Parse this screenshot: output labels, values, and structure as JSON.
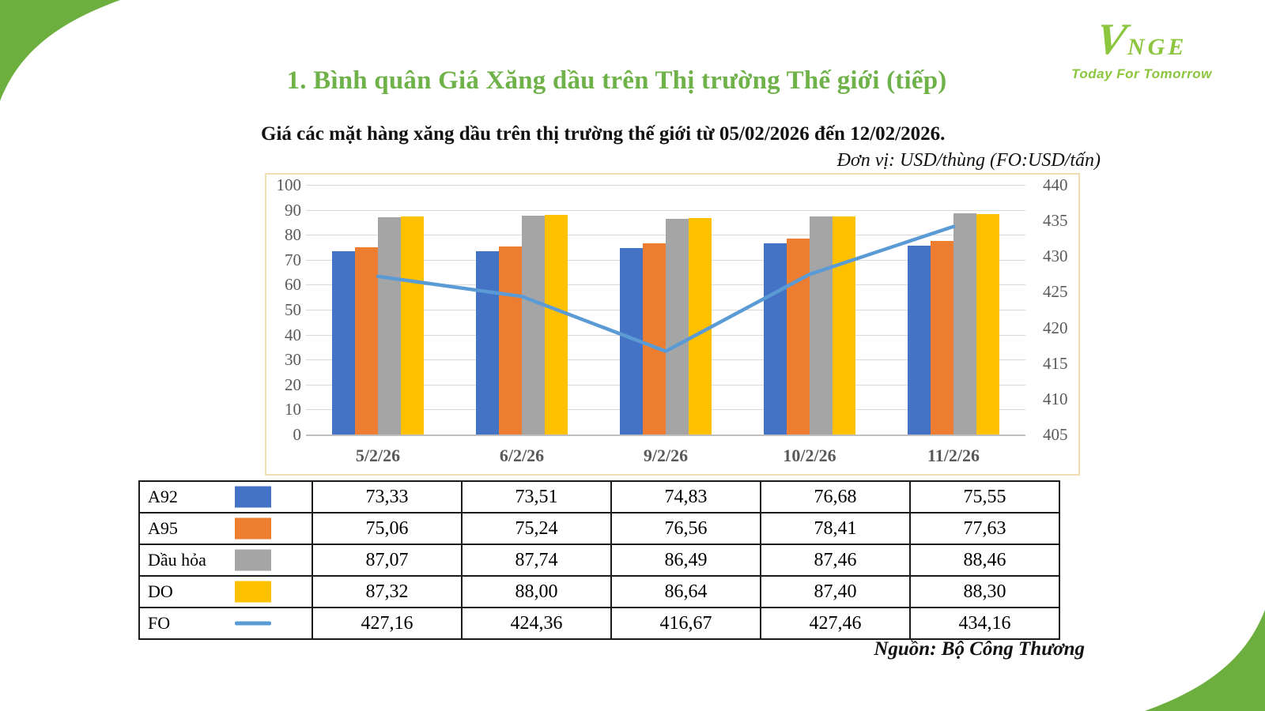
{
  "logo": {
    "brand_v": "V",
    "brand_rest": "NGE",
    "tagline": "Today For Tomorrow",
    "color": "#8CC63F"
  },
  "header": {
    "title": "1. Bình quân Giá Xăng dầu trên Thị trường Thế giới (tiếp)",
    "title_color": "#6FB24A",
    "subtitle": "Giá các mặt hàng xăng dầu trên thị trường thế giới từ 05/02/2026 đến 12/02/2026.",
    "unit_note": "Đơn vị: USD/thùng (FO:USD/tấn)"
  },
  "chart_data": {
    "type": "combo-bar-line",
    "categories": [
      "5/2/26",
      "6/2/26",
      "9/2/26",
      "10/2/26",
      "11/2/26"
    ],
    "bar_series": [
      {
        "name": "A92",
        "color": "#4472C4",
        "values": [
          73.33,
          73.51,
          74.83,
          76.68,
          75.55
        ]
      },
      {
        "name": "A95",
        "color": "#ED7D31",
        "values": [
          75.06,
          75.24,
          76.56,
          78.41,
          77.63
        ]
      },
      {
        "name": "Dầu hỏa",
        "color": "#A5A5A5",
        "values": [
          87.07,
          87.74,
          86.49,
          87.46,
          88.46
        ]
      },
      {
        "name": "DO",
        "color": "#FFC000",
        "values": [
          87.32,
          88.0,
          86.64,
          87.4,
          88.3
        ]
      }
    ],
    "line_series": {
      "name": "FO",
      "color": "#5B9BD5",
      "axis": "right",
      "values": [
        427.16,
        424.36,
        416.67,
        427.46,
        434.16
      ]
    },
    "left_axis": {
      "min": 0,
      "max": 100,
      "step": 10
    },
    "right_axis": {
      "min": 405,
      "max": 440,
      "step": 5
    },
    "grid": true,
    "gridline_color": "#D9D9D9",
    "plot_border_color": "#F2DDB2",
    "legend_position": "table-below"
  },
  "table": {
    "rows": [
      {
        "label": "A92",
        "swatch": "bar",
        "color": "#4472C4",
        "values": [
          "73,33",
          "73,51",
          "74,83",
          "76,68",
          "75,55"
        ]
      },
      {
        "label": "A95",
        "swatch": "bar",
        "color": "#ED7D31",
        "values": [
          "75,06",
          "75,24",
          "76,56",
          "78,41",
          "77,63"
        ]
      },
      {
        "label": "Dầu hỏa",
        "swatch": "bar",
        "color": "#A5A5A5",
        "values": [
          "87,07",
          "87,74",
          "86,49",
          "87,46",
          "88,46"
        ]
      },
      {
        "label": "DO",
        "swatch": "bar",
        "color": "#FFC000",
        "values": [
          "87,32",
          "88,00",
          "86,64",
          "87,40",
          "88,30"
        ]
      },
      {
        "label": "FO",
        "swatch": "line",
        "color": "#5B9BD5",
        "values": [
          "427,16",
          "424,36",
          "416,67",
          "427,46",
          "434,16"
        ]
      }
    ]
  },
  "footer": {
    "source_note": "Nguồn: Bộ Công Thương"
  },
  "decor": {
    "corner_green": "#6CAF3F"
  }
}
